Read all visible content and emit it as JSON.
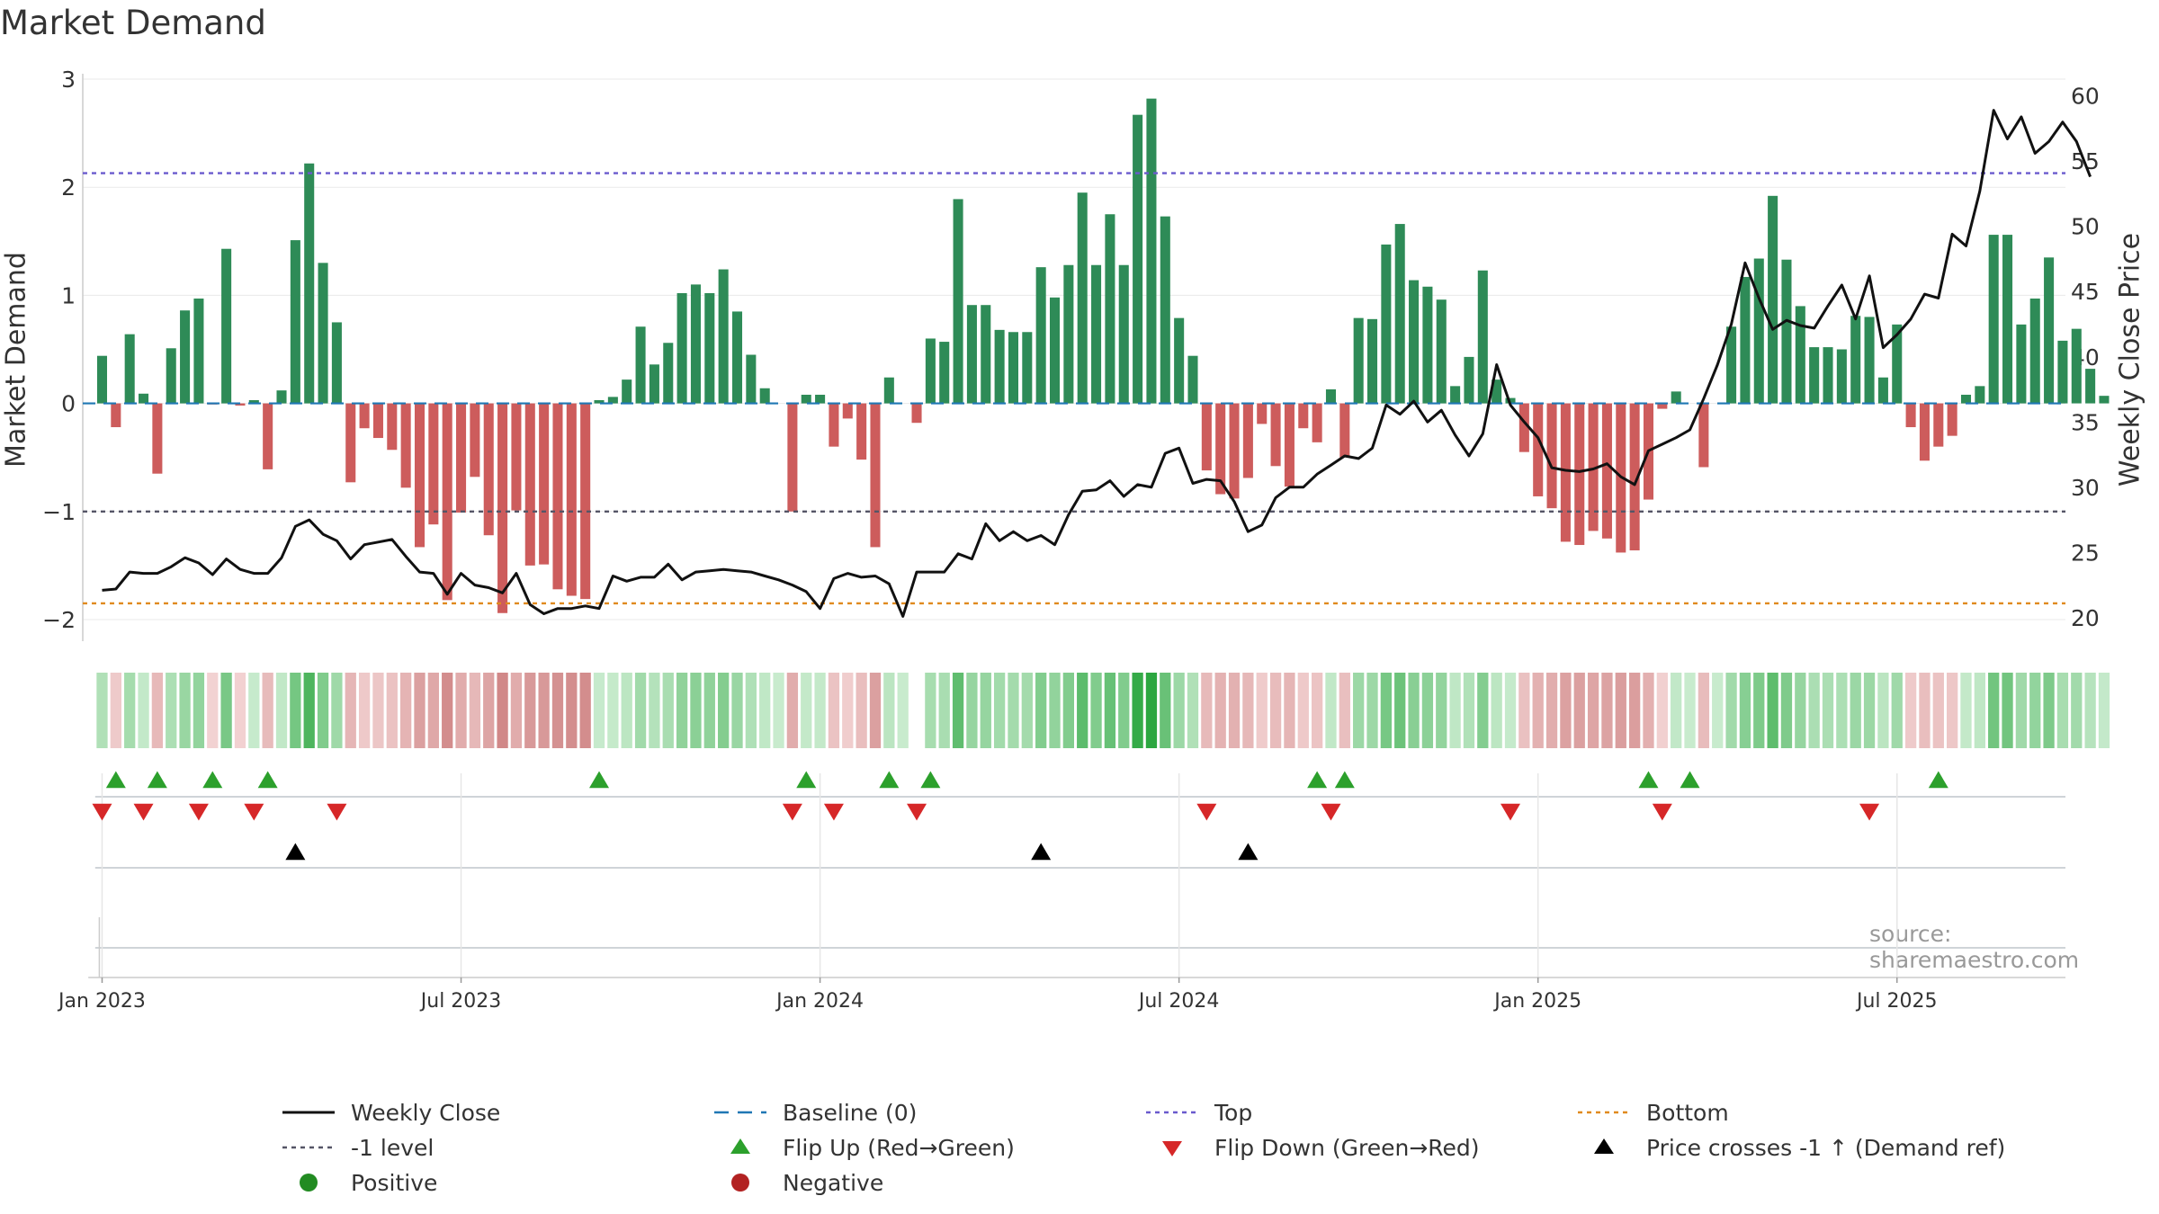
{
  "chart_data": {
    "type": "bar",
    "title": "Market Demand",
    "ylabel": "Market Demand",
    "y2label": "Weekly Close Price",
    "ylim": [
      -2.2,
      3.05
    ],
    "y2lim": [
      18.2,
      61.7
    ],
    "yticks": [
      3,
      2,
      1,
      0,
      -1,
      -2
    ],
    "ytick_labels": [
      "3",
      "2",
      "1",
      "0",
      "−1",
      "−2"
    ],
    "y2ticks": [
      60,
      55,
      50,
      45,
      40,
      35,
      30,
      25,
      20
    ],
    "y2tick_labels": [
      "60",
      "55",
      "50",
      "45",
      "40",
      "35",
      "30",
      "25",
      "20"
    ],
    "xlim_weeks": [
      -1.4,
      142.2
    ],
    "xticks": [
      {
        "week": 0,
        "label": "Jan 2023"
      },
      {
        "week": 26,
        "label": "Jul 2023"
      },
      {
        "week": 52,
        "label": "Jan 2024"
      },
      {
        "week": 78,
        "label": "Jul 2024"
      },
      {
        "week": 104,
        "label": "Jan 2025"
      },
      {
        "week": 130,
        "label": "Jul 2025"
      }
    ],
    "reference_lines": [
      {
        "name": "Top",
        "value": 2.13,
        "color": "#6a5acd"
      },
      {
        "name": "-1 level",
        "value": -1.0,
        "color": "#555566"
      },
      {
        "name": "Bottom",
        "value": -1.85,
        "color": "#e08a1e"
      },
      {
        "name": "Baseline (0)",
        "value": 0,
        "color": "#1f77b4"
      }
    ],
    "series": [
      {
        "name": "Market Demand",
        "axis": "left",
        "values": [
          0.44,
          -0.22,
          0.64,
          0.09,
          -0.65,
          0.51,
          0.86,
          0.97,
          -0.01,
          1.43,
          -0.02,
          0.03,
          -0.61,
          0.12,
          1.51,
          2.22,
          1.3,
          0.75,
          -0.73,
          -0.23,
          -0.32,
          -0.43,
          -0.78,
          -1.33,
          -1.12,
          -1.82,
          -1.01,
          -0.68,
          -1.22,
          -1.94,
          -0.99,
          -1.5,
          -1.49,
          -1.72,
          -1.78,
          -1.81,
          0.03,
          0.06,
          0.22,
          0.71,
          0.36,
          0.56,
          1.02,
          1.1,
          1.02,
          1.24,
          0.85,
          0.45,
          0.14,
          0.0,
          -1.0,
          0.08,
          0.08,
          -0.4,
          -0.14,
          -0.52,
          -1.33,
          0.24,
          0.0,
          -0.18,
          0.6,
          0.57,
          1.89,
          0.91,
          0.91,
          0.68,
          0.66,
          0.66,
          1.26,
          0.98,
          1.28,
          1.95,
          1.28,
          1.75,
          1.28,
          2.67,
          2.82,
          1.73,
          0.79,
          0.44,
          -0.62,
          -0.84,
          -0.88,
          -0.69,
          -0.19,
          -0.58,
          -0.77,
          -0.23,
          -0.36,
          0.13,
          -0.5,
          0.79,
          0.78,
          1.47,
          1.66,
          1.14,
          1.08,
          0.96,
          0.16,
          0.43,
          1.23,
          0.22,
          0.05,
          -0.45,
          -0.86,
          -0.97,
          -1.28,
          -1.31,
          -1.18,
          -1.25,
          -1.38,
          -1.36,
          -0.89,
          -0.05,
          0.11,
          0.0,
          -0.59,
          0.0,
          0.71,
          1.17,
          1.34,
          1.92,
          1.33,
          0.9,
          0.52,
          0.52,
          0.5,
          0.81,
          0.8,
          0.24,
          0.73,
          -0.22,
          -0.53,
          -0.4,
          -0.3,
          0.08,
          0.16,
          1.56,
          1.56,
          0.73,
          0.97,
          1.35,
          0.58,
          0.69,
          0.32,
          0.07
        ]
      },
      {
        "name": "Weekly Close",
        "axis": "right",
        "values": [
          22.1,
          22.2,
          23.5,
          23.4,
          23.4,
          23.9,
          24.6,
          24.2,
          23.3,
          24.5,
          23.7,
          23.4,
          23.4,
          24.6,
          27.0,
          27.5,
          26.4,
          25.9,
          24.5,
          25.6,
          25.8,
          26.0,
          24.7,
          23.5,
          23.4,
          21.8,
          23.4,
          22.5,
          22.3,
          21.9,
          23.4,
          21.0,
          20.3,
          20.7,
          20.7,
          20.9,
          20.7,
          23.2,
          22.8,
          23.1,
          23.1,
          24.1,
          22.9,
          23.5,
          23.6,
          23.7,
          23.6,
          23.5,
          23.2,
          22.9,
          22.5,
          22.0,
          20.7,
          23.0,
          23.4,
          23.1,
          23.2,
          22.6,
          20.1,
          23.5,
          23.5,
          23.5,
          24.9,
          24.5,
          27.2,
          25.9,
          26.6,
          25.9,
          26.3,
          25.6,
          27.9,
          29.7,
          29.8,
          30.5,
          29.3,
          30.2,
          30.0,
          32.6,
          33.0,
          30.3,
          30.6,
          30.5,
          28.9,
          26.6,
          27.1,
          29.2,
          30.0,
          30.0,
          31.0,
          31.7,
          32.4,
          32.2,
          33.0,
          36.3,
          35.6,
          36.6,
          35.0,
          35.9,
          34.0,
          32.4,
          34.1,
          39.4,
          36.3,
          35.0,
          33.8,
          31.5,
          31.3,
          31.2,
          31.4,
          31.8,
          30.8,
          30.2,
          32.8,
          33.3,
          33.8,
          34.4,
          36.8,
          39.4,
          42.5,
          47.2,
          44.5,
          42.1,
          42.8,
          42.4,
          42.2,
          43.9,
          45.5,
          42.9,
          46.2,
          40.7,
          41.7,
          42.9,
          44.8,
          44.5,
          49.4,
          48.5,
          52.7,
          58.9,
          56.7,
          58.4,
          55.6,
          56.5,
          58.0,
          56.5,
          53.8
        ]
      }
    ],
    "heat_strip": {
      "label": "demand intensity strip",
      "missing_week": 59
    },
    "flip_up_weeks": [
      1,
      4,
      8,
      12,
      36,
      51,
      57,
      60,
      88,
      90,
      112,
      115,
      133
    ],
    "flip_down_weeks": [
      0,
      3,
      7,
      11,
      17,
      50,
      53,
      59,
      80,
      89,
      102,
      113,
      128
    ],
    "price_cross_weeks": [
      14,
      68,
      83
    ]
  },
  "legend": {
    "items": [
      {
        "label": "Weekly Close",
        "swatch": "line",
        "color": "#111111"
      },
      {
        "label": "Baseline (0)",
        "swatch": "dash",
        "color": "#1f77b4"
      },
      {
        "label": "Top",
        "swatch": "dot",
        "color": "#6a5acd"
      },
      {
        "label": "Bottom",
        "swatch": "dot",
        "color": "#e08a1e"
      },
      {
        "label": "-1 level",
        "swatch": "dot",
        "color": "#555566"
      },
      {
        "label": "Flip Up (Red→Green)",
        "swatch": "tri-up",
        "color": "#2ca02c"
      },
      {
        "label": "Flip Down (Green→Red)",
        "swatch": "tri-down",
        "color": "#d62728"
      },
      {
        "label": "Price crosses -1 ↑ (Demand ref)",
        "swatch": "tri-up",
        "color": "#000000"
      },
      {
        "label": "Positive",
        "swatch": "circle",
        "color": "#228b22"
      },
      {
        "label": "Negative",
        "swatch": "circle",
        "color": "#b22222"
      }
    ]
  },
  "source": "source: sharemaestro.com",
  "colors": {
    "positive_bar": "#2e8b57",
    "negative_bar": "#cd5c5c",
    "flip_up": "#2ca02c",
    "flip_down": "#d62728",
    "price_cross": "#000000",
    "price_line": "#111111"
  }
}
